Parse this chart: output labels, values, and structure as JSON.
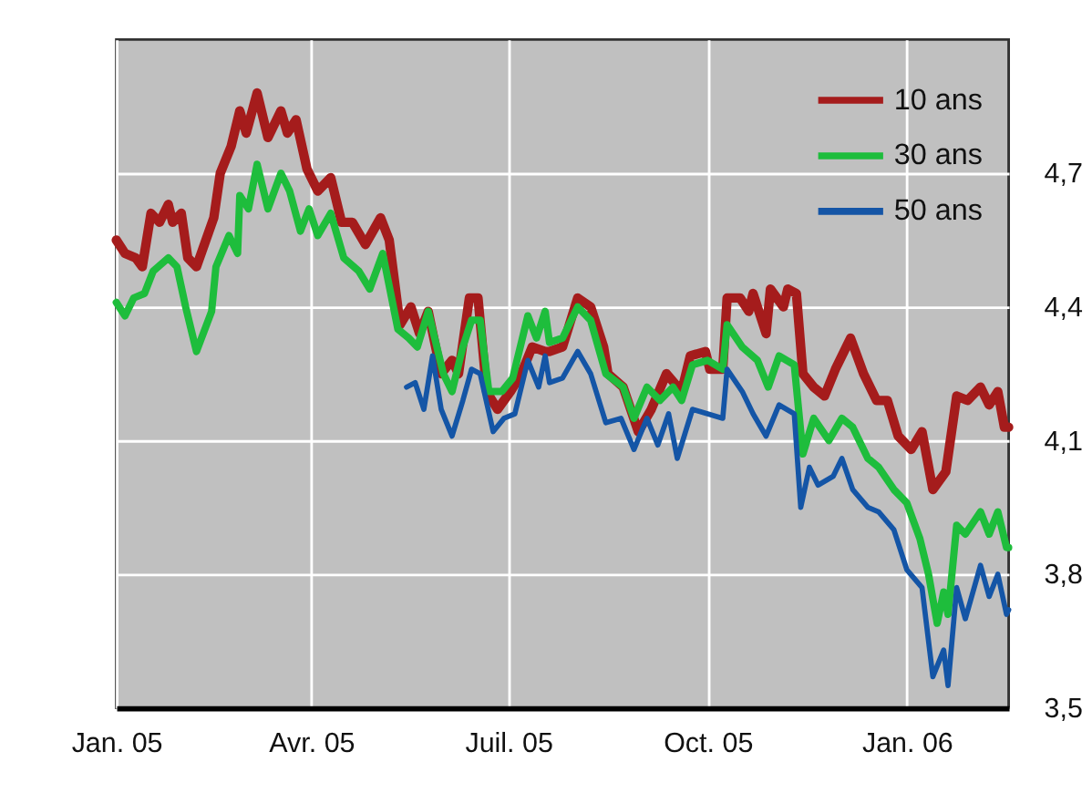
{
  "chart_data": {
    "type": "line",
    "xlim": [
      "2005-01-01",
      "2006-02-17"
    ],
    "ylim": [
      3.5,
      5.0
    ],
    "xticks": [
      {
        "value": "2005-01-01",
        "label": "Jan. 05"
      },
      {
        "value": "2005-04-01",
        "label": "Avr. 05"
      },
      {
        "value": "2005-07-01",
        "label": "Juil. 05"
      },
      {
        "value": "2005-10-01",
        "label": "Oct. 05"
      },
      {
        "value": "2006-01-01",
        "label": "Jan. 06"
      }
    ],
    "yticks": [
      {
        "value": 3.5,
        "label": "3,5"
      },
      {
        "value": 3.8,
        "label": "3,8"
      },
      {
        "value": 4.1,
        "label": "4,1"
      },
      {
        "value": 4.4,
        "label": "4,4"
      },
      {
        "value": 4.7,
        "label": "4,7"
      }
    ],
    "grid": true,
    "legend": "top right",
    "series": [
      {
        "name": "10 ans",
        "color": "#a51c1c",
        "x": [
          "2005-01-01",
          "2005-01-05",
          "2005-01-10",
          "2005-01-13",
          "2005-01-17",
          "2005-01-21",
          "2005-01-25",
          "2005-01-27",
          "2005-01-31",
          "2005-02-03",
          "2005-02-07",
          "2005-02-15",
          "2005-02-18",
          "2005-02-23",
          "2005-02-27",
          "2005-03-02",
          "2005-03-07",
          "2005-03-12",
          "2005-03-18",
          "2005-03-21",
          "2005-03-25",
          "2005-03-30",
          "2005-04-04",
          "2005-04-10",
          "2005-04-15",
          "2005-04-20",
          "2005-04-26",
          "2005-05-03",
          "2005-05-07",
          "2005-05-12",
          "2005-05-17",
          "2005-05-21",
          "2005-05-25",
          "2005-05-31",
          "2005-06-05",
          "2005-06-08",
          "2005-06-13",
          "2005-06-17",
          "2005-06-21",
          "2005-06-26",
          "2005-07-02",
          "2005-07-07",
          "2005-07-12",
          "2005-07-18",
          "2005-07-20",
          "2005-07-26",
          "2005-08-02",
          "2005-08-08",
          "2005-08-14",
          "2005-08-16",
          "2005-08-23",
          "2005-08-30",
          "2005-09-05",
          "2005-09-12",
          "2005-09-19",
          "2005-09-23",
          "2005-09-30",
          "2005-10-02",
          "2005-10-08",
          "2005-10-10",
          "2005-10-16",
          "2005-10-20",
          "2005-10-22",
          "2005-10-28",
          "2005-10-30",
          "2005-11-05",
          "2005-11-07",
          "2005-11-11",
          "2005-11-14",
          "2005-11-19",
          "2005-11-24",
          "2005-11-29",
          "2005-12-06",
          "2005-12-12",
          "2005-12-18",
          "2005-12-23",
          "2005-12-28",
          "2006-01-03",
          "2006-01-08",
          "2006-01-13",
          "2006-01-19",
          "2006-01-24",
          "2006-01-29",
          "2006-02-04",
          "2006-02-08",
          "2006-02-12",
          "2006-02-15",
          "2006-02-17"
        ],
        "values": [
          4.55,
          4.52,
          4.51,
          4.49,
          4.61,
          4.59,
          4.63,
          4.59,
          4.61,
          4.51,
          4.49,
          4.6,
          4.7,
          4.76,
          4.84,
          4.79,
          4.88,
          4.78,
          4.84,
          4.79,
          4.82,
          4.71,
          4.66,
          4.69,
          4.59,
          4.59,
          4.54,
          4.6,
          4.55,
          4.36,
          4.4,
          4.34,
          4.39,
          4.25,
          4.28,
          4.25,
          4.42,
          4.42,
          4.21,
          4.17,
          4.21,
          4.25,
          4.31,
          4.3,
          4.3,
          4.31,
          4.42,
          4.4,
          4.31,
          4.25,
          4.22,
          4.12,
          4.17,
          4.25,
          4.21,
          4.29,
          4.3,
          4.26,
          4.26,
          4.42,
          4.42,
          4.39,
          4.43,
          4.34,
          4.44,
          4.4,
          4.44,
          4.43,
          4.25,
          4.22,
          4.2,
          4.26,
          4.33,
          4.25,
          4.19,
          4.19,
          4.11,
          4.08,
          4.12,
          3.99,
          4.03,
          4.2,
          4.19,
          4.22,
          4.18,
          4.21,
          4.13,
          4.13
        ]
      },
      {
        "name": "30 ans",
        "color": "#1ebd3c",
        "x": [
          "2005-01-01",
          "2005-01-05",
          "2005-01-09",
          "2005-01-14",
          "2005-01-18",
          "2005-01-25",
          "2005-01-29",
          "2005-02-02",
          "2005-02-07",
          "2005-02-14",
          "2005-02-16",
          "2005-02-22",
          "2005-02-26",
          "2005-02-27",
          "2005-03-03",
          "2005-03-07",
          "2005-03-12",
          "2005-03-18",
          "2005-03-22",
          "2005-03-27",
          "2005-03-31",
          "2005-04-04",
          "2005-04-10",
          "2005-04-16",
          "2005-04-23",
          "2005-04-28",
          "2005-05-04",
          "2005-05-11",
          "2005-05-16",
          "2005-05-20",
          "2005-05-25",
          "2005-06-01",
          "2005-06-05",
          "2005-06-10",
          "2005-06-14",
          "2005-06-18",
          "2005-06-22",
          "2005-06-28",
          "2005-07-03",
          "2005-07-10",
          "2005-07-14",
          "2005-07-18",
          "2005-07-20",
          "2005-07-26",
          "2005-08-02",
          "2005-08-08",
          "2005-08-15",
          "2005-08-23",
          "2005-08-28",
          "2005-09-03",
          "2005-09-09",
          "2005-09-15",
          "2005-09-19",
          "2005-09-24",
          "2005-10-01",
          "2005-10-08",
          "2005-10-10",
          "2005-10-17",
          "2005-10-24",
          "2005-10-29",
          "2005-11-03",
          "2005-11-10",
          "2005-11-14",
          "2005-11-19",
          "2005-11-26",
          "2005-12-02",
          "2005-12-07",
          "2005-12-14",
          "2005-12-19",
          "2005-12-26",
          "2006-01-01",
          "2006-01-07",
          "2006-01-11",
          "2006-01-15",
          "2006-01-18",
          "2006-01-20",
          "2006-01-24",
          "2006-01-28",
          "2006-02-04",
          "2006-02-08",
          "2006-02-12",
          "2006-02-16",
          "2006-02-17"
        ],
        "values": [
          4.41,
          4.38,
          4.42,
          4.43,
          4.48,
          4.51,
          4.49,
          4.4,
          4.3,
          4.39,
          4.49,
          4.56,
          4.52,
          4.65,
          4.62,
          4.72,
          4.62,
          4.7,
          4.66,
          4.57,
          4.62,
          4.56,
          4.61,
          4.51,
          4.48,
          4.44,
          4.52,
          4.35,
          4.33,
          4.31,
          4.39,
          4.25,
          4.21,
          4.31,
          4.37,
          4.37,
          4.21,
          4.21,
          4.24,
          4.38,
          4.33,
          4.39,
          4.32,
          4.33,
          4.4,
          4.37,
          4.25,
          4.22,
          4.15,
          4.22,
          4.19,
          4.22,
          4.19,
          4.27,
          4.28,
          4.26,
          4.36,
          4.31,
          4.28,
          4.22,
          4.29,
          4.27,
          4.07,
          4.15,
          4.1,
          4.15,
          4.13,
          4.06,
          4.04,
          3.99,
          3.96,
          3.88,
          3.8,
          3.69,
          3.76,
          3.71,
          3.91,
          3.89,
          3.94,
          3.89,
          3.94,
          3.86,
          3.86
        ]
      },
      {
        "name": "50 ans",
        "color": "#1455a6",
        "x": [
          "2005-05-15",
          "2005-05-19",
          "2005-05-23",
          "2005-05-27",
          "2005-05-31",
          "2005-06-05",
          "2005-06-10",
          "2005-06-14",
          "2005-06-18",
          "2005-06-24",
          "2005-06-29",
          "2005-07-04",
          "2005-07-10",
          "2005-07-15",
          "2005-07-18",
          "2005-07-20",
          "2005-07-26",
          "2005-08-02",
          "2005-08-08",
          "2005-08-15",
          "2005-08-22",
          "2005-08-28",
          "2005-09-03",
          "2005-09-08",
          "2005-09-13",
          "2005-09-17",
          "2005-09-24",
          "2005-10-01",
          "2005-10-08",
          "2005-10-10",
          "2005-10-17",
          "2005-10-22",
          "2005-10-28",
          "2005-11-03",
          "2005-11-10",
          "2005-11-13",
          "2005-11-17",
          "2005-11-21",
          "2005-11-28",
          "2005-12-02",
          "2005-12-07",
          "2005-12-14",
          "2005-12-19",
          "2005-12-26",
          "2006-01-01",
          "2006-01-08",
          "2006-01-13",
          "2006-01-18",
          "2006-01-20",
          "2006-01-24",
          "2006-01-28",
          "2006-02-04",
          "2006-02-08",
          "2006-02-12",
          "2006-02-16",
          "2006-02-17"
        ],
        "values": [
          4.22,
          4.23,
          4.17,
          4.29,
          4.17,
          4.11,
          4.19,
          4.26,
          4.25,
          4.12,
          4.15,
          4.16,
          4.28,
          4.22,
          4.29,
          4.23,
          4.24,
          4.3,
          4.25,
          4.14,
          4.15,
          4.08,
          4.15,
          4.09,
          4.16,
          4.06,
          4.17,
          4.16,
          4.15,
          4.26,
          4.21,
          4.16,
          4.11,
          4.18,
          4.16,
          3.95,
          4.04,
          4.0,
          4.02,
          4.06,
          3.99,
          3.95,
          3.94,
          3.9,
          3.81,
          3.77,
          3.57,
          3.63,
          3.55,
          3.77,
          3.7,
          3.82,
          3.75,
          3.8,
          3.71,
          3.72
        ]
      }
    ]
  }
}
